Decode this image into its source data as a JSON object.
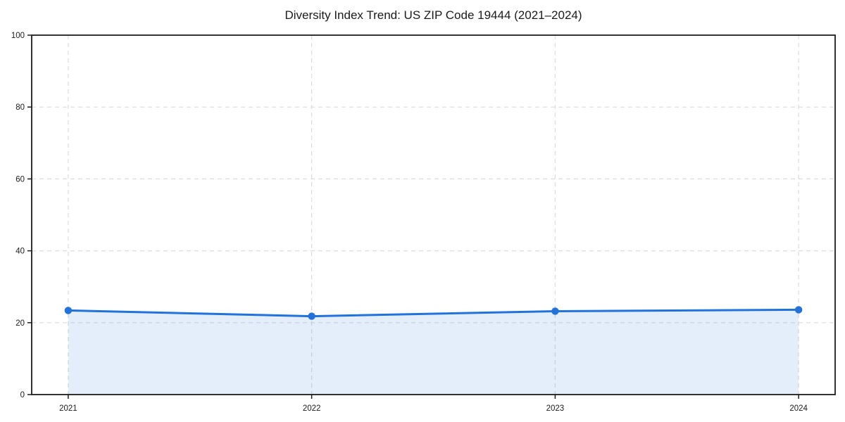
{
  "chart_data": {
    "type": "line",
    "title": "Diversity Index Trend: US ZIP Code 19444 (2021–2024)",
    "xlabel": "",
    "ylabel": "",
    "x": [
      2021,
      2022,
      2023,
      2024
    ],
    "series": [
      {
        "name": "Diversity Index",
        "values": [
          23.4,
          21.8,
          23.2,
          23.6
        ]
      }
    ],
    "xticks": [
      2021,
      2022,
      2023,
      2024
    ],
    "xtick_labels": [
      "2021",
      "2022",
      "2023",
      "2024"
    ],
    "yticks": [
      0,
      20,
      40,
      60,
      80,
      100
    ],
    "ytick_labels": [
      "0",
      "20",
      "40",
      "60",
      "80",
      "100"
    ],
    "xlim": [
      2020.85,
      2024.15
    ],
    "ylim": [
      0,
      100
    ],
    "grid": true,
    "grid_style": "dashed",
    "legend": false,
    "area_fill": true,
    "colors": {
      "line": "#2272dc",
      "marker": "#2272dc",
      "area": "rgba(34,114,220,0.12)",
      "gridline": "#dcdcdc",
      "spine": "#1c1c1c",
      "text": "#1a1a1a",
      "background": "#ffffff"
    }
  }
}
